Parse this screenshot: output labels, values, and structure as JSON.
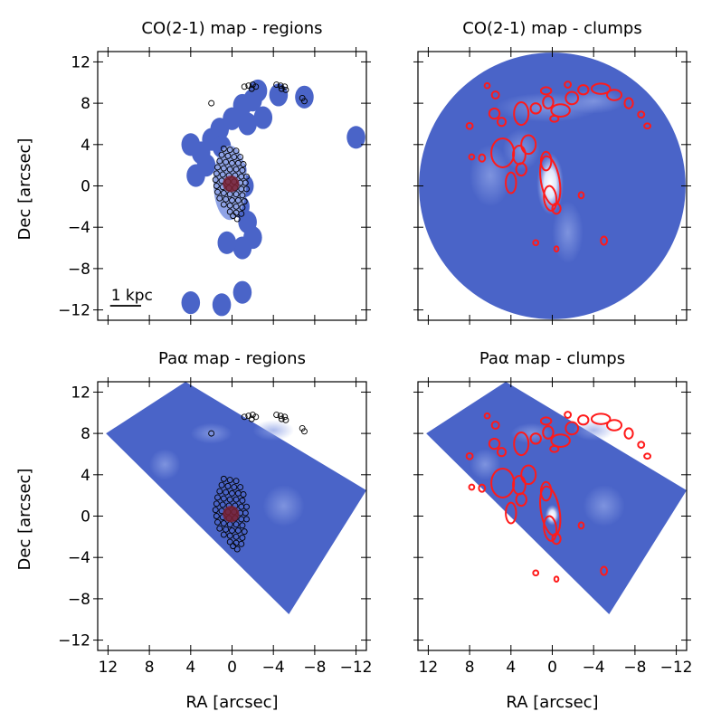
{
  "figure": {
    "xlabel": "RA [arcsec]",
    "ylabel": "Dec [arcsec]"
  },
  "chart_data": {
    "type": "heatmap",
    "xlim": [
      13,
      -13
    ],
    "ylim": [
      -13,
      13
    ],
    "x_ticks": [
      12,
      8,
      4,
      0,
      -4,
      -8,
      -12
    ],
    "x_tick_labels": [
      "12",
      "8",
      "4",
      "0",
      "−4",
      "−8",
      "−12"
    ],
    "y_ticks": [
      12,
      8,
      4,
      0,
      -4,
      -8,
      -12
    ],
    "y_tick_labels": [
      "12",
      "8",
      "4",
      "0",
      "−4",
      "−8",
      "−12"
    ],
    "colors": {
      "map": "#4a64c8",
      "map_light": "#8fa3e6",
      "map_dark": "#3e57bd",
      "core": "#7a2030",
      "contour": "#ff1a1a",
      "region_edge": "#000000"
    },
    "panels": [
      {
        "id": "co-regions",
        "title": "CO(2-1) map - regions",
        "map": "co",
        "overlay": "regions",
        "scalebar": "1 kpc",
        "scalebar_length_arcsec": 3.0
      },
      {
        "id": "co-clumps",
        "title": "CO(2-1) map - clumps",
        "map": "co",
        "overlay": "clumps"
      },
      {
        "id": "pa-regions",
        "title": "Paα map - regions",
        "map": "paa",
        "overlay": "regions"
      },
      {
        "id": "pa-clumps",
        "title": "Paα map - clumps",
        "map": "paa",
        "overlay": "clumps"
      }
    ],
    "co_field": {
      "center": [
        0,
        0
      ],
      "radius": 12.9
    },
    "paa_field": {
      "corners": [
        [
          12.2,
          8.0
        ],
        [
          4.5,
          13.0
        ],
        [
          -13.0,
          2.5
        ],
        [
          -5.5,
          -9.5
        ],
        [
          12.2,
          8.0
        ]
      ]
    },
    "co_emission": [
      [
        2.0,
        4.5
      ],
      [
        1.2,
        5.5
      ],
      [
        0.0,
        6.5
      ],
      [
        -1.0,
        7.8
      ],
      [
        -2.0,
        8.3
      ],
      [
        -1.5,
        6.0
      ],
      [
        1.0,
        3.8
      ],
      [
        0.5,
        2.5
      ],
      [
        -0.5,
        1.5
      ],
      [
        -1.2,
        0.0
      ],
      [
        -0.8,
        -2.0
      ],
      [
        -1.5,
        -3.5
      ],
      [
        -2.0,
        -5.0
      ],
      [
        -1.0,
        -6.0
      ],
      [
        0.5,
        -5.5
      ],
      [
        2.5,
        2.0
      ],
      [
        3.5,
        1.0
      ],
      [
        4.0,
        4.0
      ],
      [
        3.0,
        3.2
      ],
      [
        -2.5,
        9.2
      ],
      [
        -4.5,
        8.8
      ],
      [
        -7.0,
        8.6
      ],
      [
        -3.0,
        6.6
      ],
      [
        1.0,
        -11.5
      ],
      [
        -1.0,
        -10.3
      ],
      [
        4.0,
        -11.3
      ],
      [
        -12.0,
        4.7
      ]
    ],
    "regions": [
      [
        0.8,
        3.6
      ],
      [
        0.2,
        3.5
      ],
      [
        -0.4,
        3.4
      ],
      [
        1.0,
        3.0
      ],
      [
        0.4,
        2.9
      ],
      [
        -0.2,
        2.8
      ],
      [
        -0.8,
        2.8
      ],
      [
        1.2,
        2.4
      ],
      [
        0.6,
        2.3
      ],
      [
        0.0,
        2.2
      ],
      [
        -0.6,
        2.2
      ],
      [
        -1.1,
        2.1
      ],
      [
        1.4,
        1.8
      ],
      [
        0.8,
        1.7
      ],
      [
        0.2,
        1.6
      ],
      [
        -0.4,
        1.6
      ],
      [
        -1.0,
        1.5
      ],
      [
        1.5,
        1.2
      ],
      [
        0.9,
        1.1
      ],
      [
        0.3,
        1.0
      ],
      [
        -0.3,
        1.0
      ],
      [
        -0.9,
        0.9
      ],
      [
        -1.4,
        0.9
      ],
      [
        1.6,
        0.6
      ],
      [
        1.0,
        0.5
      ],
      [
        0.4,
        0.4
      ],
      [
        -0.2,
        0.4
      ],
      [
        -0.8,
        0.3
      ],
      [
        -1.3,
        0.3
      ],
      [
        1.5,
        0.0
      ],
      [
        0.9,
        -0.1
      ],
      [
        0.3,
        -0.2
      ],
      [
        -0.3,
        -0.2
      ],
      [
        -0.9,
        -0.3
      ],
      [
        -1.4,
        -0.3
      ],
      [
        1.4,
        -0.6
      ],
      [
        0.8,
        -0.7
      ],
      [
        0.2,
        -0.8
      ],
      [
        -0.4,
        -0.8
      ],
      [
        -1.0,
        -0.9
      ],
      [
        1.2,
        -1.2
      ],
      [
        0.6,
        -1.3
      ],
      [
        0.0,
        -1.4
      ],
      [
        -0.6,
        -1.4
      ],
      [
        -1.2,
        -1.5
      ],
      [
        0.8,
        -1.8
      ],
      [
        0.2,
        -1.9
      ],
      [
        -0.4,
        -2.0
      ],
      [
        -1.0,
        -2.1
      ],
      [
        0.2,
        -2.5
      ],
      [
        -0.4,
        -2.6
      ],
      [
        -0.9,
        -2.7
      ],
      [
        -0.5,
        -3.2
      ],
      [
        -0.1,
        -2.9
      ],
      [
        -1.2,
        9.6
      ],
      [
        -1.6,
        9.7
      ],
      [
        -2.0,
        9.8
      ],
      [
        -2.3,
        9.6
      ],
      [
        -1.9,
        9.4
      ],
      [
        -4.3,
        9.8
      ],
      [
        -4.7,
        9.7
      ],
      [
        -5.1,
        9.6
      ],
      [
        -4.8,
        9.4
      ],
      [
        -5.2,
        9.3
      ],
      [
        -6.8,
        8.5
      ],
      [
        -7.0,
        8.2
      ],
      [
        2.0,
        8.0
      ]
    ],
    "clumps": [
      [
        0.2,
        0.5,
        0.9,
        2.4,
        -0.5
      ],
      [
        0.2,
        -1.2,
        0.6,
        1.2,
        -0.3
      ],
      [
        0.6,
        2.4,
        0.5,
        0.9,
        0
      ],
      [
        -0.4,
        -2.2,
        0.4,
        0.5,
        0
      ],
      [
        -2.8,
        -0.9,
        0.25,
        0.3,
        0
      ],
      [
        4.8,
        3.2,
        1.1,
        1.4,
        0
      ],
      [
        3.2,
        3.0,
        0.6,
        0.9,
        0
      ],
      [
        3.0,
        1.6,
        0.5,
        0.6,
        0
      ],
      [
        2.3,
        4.0,
        0.7,
        0.9,
        0
      ],
      [
        4.0,
        0.3,
        0.5,
        1.0,
        0
      ],
      [
        6.8,
        2.7,
        0.3,
        0.35,
        0
      ],
      [
        5.5,
        8.8,
        0.35,
        0.35,
        0
      ],
      [
        5.6,
        7.0,
        0.5,
        0.5,
        0
      ],
      [
        4.9,
        6.2,
        0.4,
        0.4,
        0
      ],
      [
        3.0,
        7.0,
        0.7,
        1.1,
        0
      ],
      [
        1.6,
        7.5,
        0.5,
        0.5,
        0
      ],
      [
        0.4,
        8.1,
        0.5,
        0.6,
        0
      ],
      [
        -0.2,
        6.5,
        0.4,
        0.3,
        0
      ],
      [
        -0.8,
        7.3,
        0.9,
        0.6,
        0
      ],
      [
        -1.9,
        8.5,
        0.6,
        0.6,
        0
      ],
      [
        0.6,
        9.2,
        0.5,
        0.35,
        0
      ],
      [
        -1.5,
        9.8,
        0.3,
        0.3,
        0
      ],
      [
        -3.0,
        9.3,
        0.5,
        0.45,
        0
      ],
      [
        -4.7,
        9.4,
        0.9,
        0.5,
        0
      ],
      [
        -6.0,
        8.8,
        0.7,
        0.5,
        0
      ],
      [
        -7.4,
        8.0,
        0.4,
        0.5,
        0
      ],
      [
        -8.6,
        6.9,
        0.3,
        0.3,
        0
      ],
      [
        -9.2,
        5.8,
        0.3,
        0.25,
        0
      ],
      [
        8.0,
        5.8,
        0.3,
        0.3,
        0
      ],
      [
        7.8,
        2.8,
        0.25,
        0.25,
        0
      ],
      [
        1.6,
        -5.5,
        0.25,
        0.25,
        0
      ],
      [
        -5.0,
        -5.3,
        0.3,
        0.4,
        0
      ],
      [
        -0.4,
        -6.1,
        0.2,
        0.25,
        0
      ],
      [
        6.3,
        9.7,
        0.25,
        0.25,
        0
      ]
    ]
  }
}
